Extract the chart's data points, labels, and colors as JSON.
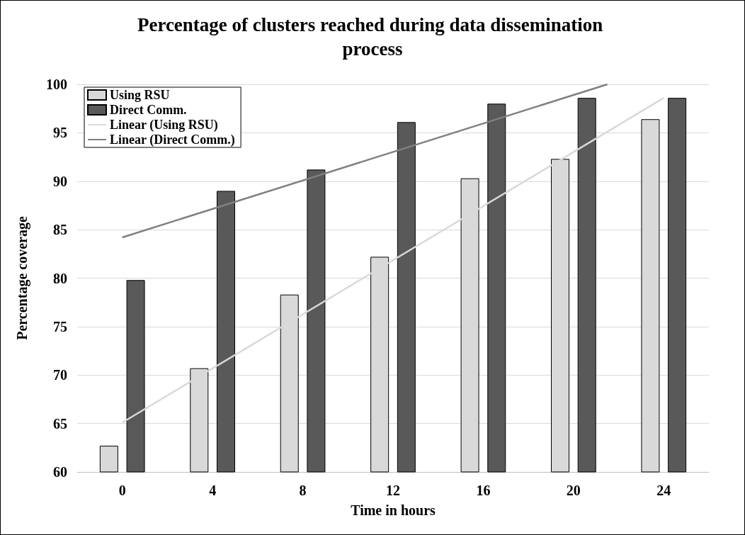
{
  "chart_data": {
    "type": "bar",
    "title": "Percentage of clusters reached during data dissemination process",
    "xlabel": "Time in hours",
    "ylabel": "Percentage coverage",
    "x": [
      0,
      4,
      8,
      12,
      16,
      20,
      24
    ],
    "series": [
      {
        "name": "Using RSU",
        "color": "#d9d9d9",
        "values": [
          62.7,
          70.7,
          78.3,
          82.2,
          90.3,
          92.3,
          96.4
        ]
      },
      {
        "name": "Direct Comm.",
        "color": "#595959",
        "values": [
          79.8,
          89.0,
          91.2,
          96.1,
          98.0,
          98.6,
          98.6
        ]
      },
      {
        "name": "Linear (Using RSU)",
        "type": "line",
        "color": "#d9d9d9",
        "x": [
          0,
          24
        ],
        "values": [
          65.1,
          98.6
        ]
      },
      {
        "name": "Linear (Direct Comm.)",
        "type": "line",
        "color": "#808080",
        "x": [
          0,
          21.5
        ],
        "values": [
          84.2,
          100
        ]
      }
    ],
    "xlim": [
      -2,
      26
    ],
    "xticks": [
      0,
      4,
      8,
      12,
      16,
      20,
      24
    ],
    "ylim": [
      60,
      100
    ],
    "yticks": [
      60,
      65,
      70,
      75,
      80,
      85,
      90,
      95,
      100
    ],
    "grid": "y",
    "legend": "top left",
    "marker": "none"
  }
}
